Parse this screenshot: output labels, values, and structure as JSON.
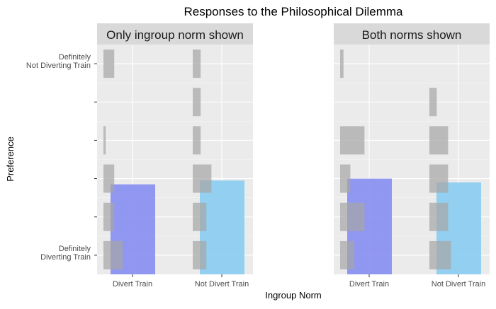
{
  "chart_data": {
    "type": "bar",
    "title": "Responses to the Philosophical Dilemma",
    "xlabel": "Ingroup Norm",
    "ylabel": "Preference",
    "categories": [
      "Divert Train",
      "Not Divert Train"
    ],
    "ylim": [
      0.5,
      6.5
    ],
    "y_tick_labels": [
      "Definitely\nDiverting Train",
      "",
      "",
      "",
      "",
      "Definitely\nNot Diverting Train"
    ],
    "grid": true,
    "panels": [
      {
        "title": "Only ingroup norm shown",
        "means": [
          {
            "category": "Divert Train",
            "value": 2.85,
            "color": "#7b84f0"
          },
          {
            "category": "Not Divert Train",
            "value": 2.95,
            "color": "#7ec8f0"
          }
        ],
        "distribution": [
          {
            "category": "Divert Train",
            "proportions": [
              0.34,
              0.19,
              0.19,
              0.04,
              0.0,
              0.19
            ]
          },
          {
            "category": "Not Divert Train",
            "proportions": [
              0.24,
              0.24,
              0.33,
              0.14,
              0.14,
              0.14
            ]
          }
        ]
      },
      {
        "title": "Both norms shown",
        "means": [
          {
            "category": "Divert Train",
            "value": 3.0,
            "color": "#7b84f0"
          },
          {
            "category": "Not Divert Train",
            "value": 2.9,
            "color": "#7ec8f0"
          }
        ],
        "distribution": [
          {
            "category": "Divert Train",
            "proportions": [
              0.25,
              0.43,
              0.18,
              0.43,
              0.0,
              0.06
            ]
          },
          {
            "category": "Not Divert Train",
            "proportions": [
              0.38,
              0.33,
              0.33,
              0.33,
              0.13,
              0.0
            ]
          }
        ]
      }
    ]
  }
}
